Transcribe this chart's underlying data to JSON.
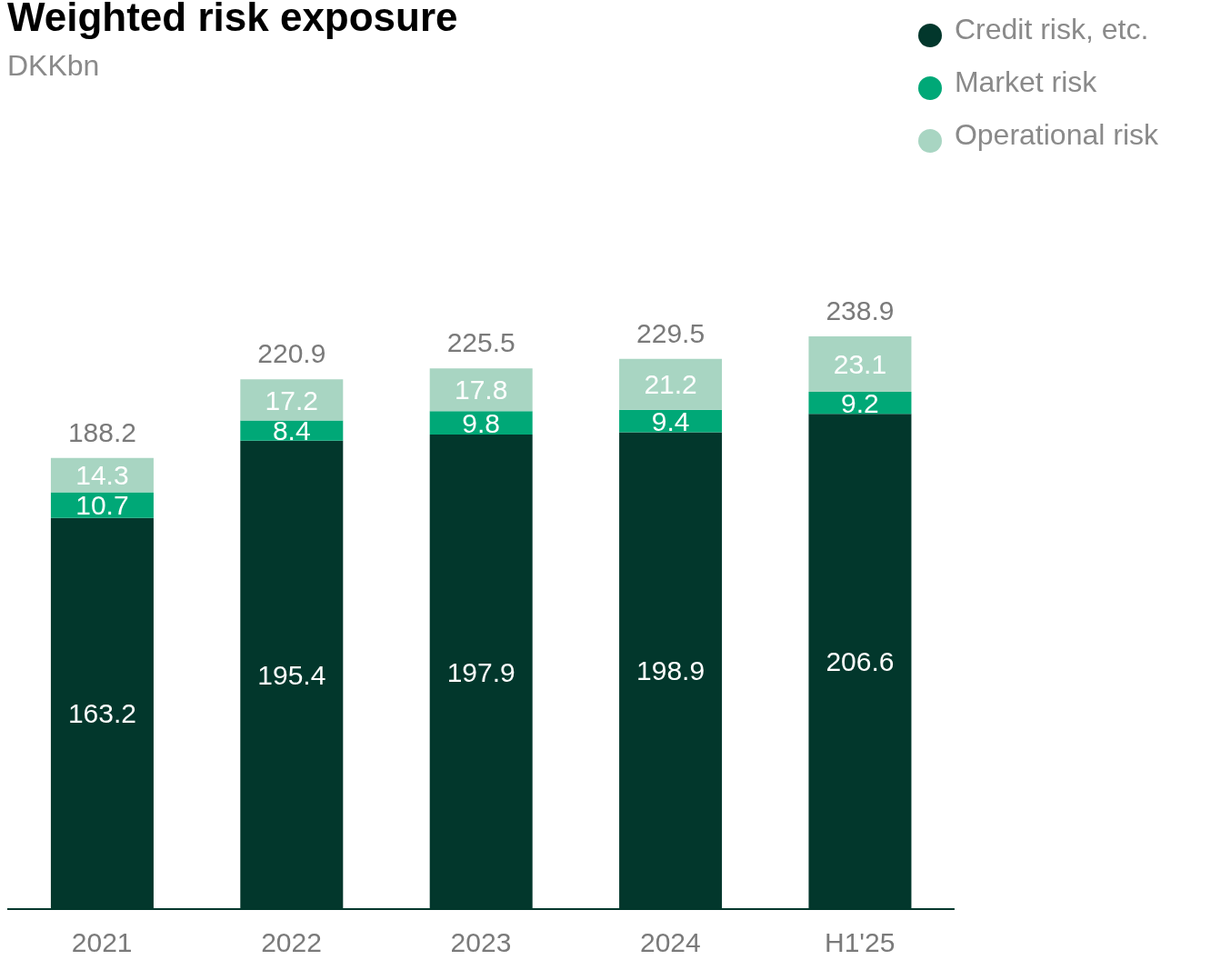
{
  "chart_data": {
    "type": "bar",
    "title": "Weighted risk exposure",
    "subtitle": "DKKbn",
    "categories": [
      "2021",
      "2022",
      "2023",
      "2024",
      "H1'25"
    ],
    "stacked": true,
    "data_labels": true,
    "legend": "top right",
    "grid": false,
    "series": [
      {
        "name": "Credit risk, etc.",
        "color": "#02372c",
        "values": [
          163.2,
          195.4,
          197.9,
          198.9,
          206.6
        ]
      },
      {
        "name": "Market risk",
        "color": "#00a877",
        "values": [
          10.7,
          8.4,
          9.8,
          9.4,
          9.2
        ]
      },
      {
        "name": "Operational risk",
        "color": "#a8d5c2",
        "values": [
          14.3,
          17.2,
          17.8,
          21.2,
          23.1
        ]
      }
    ],
    "totals": [
      "188.2",
      "220.9",
      "225.5",
      "229.5",
      "238.9"
    ]
  }
}
